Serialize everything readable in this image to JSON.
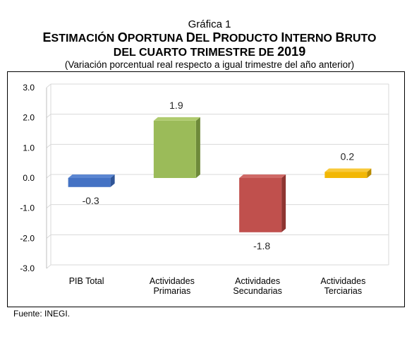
{
  "figure": {
    "number": "Gráfica 1",
    "title_line1": "Estimación Oportuna del Producto Interno Bruto",
    "title_line2": "del cuarto trimestre de 2019",
    "subtitle": "(Variación porcentual real respecto a igual trimestre del año anterior)",
    "source": "Fuente: INEGI."
  },
  "chart_data": {
    "type": "bar",
    "categories": [
      "PIB Total",
      "Actividades Primarias",
      "Actividades Secundarias",
      "Actividades Terciarias"
    ],
    "category_lines": [
      [
        "PIB Total"
      ],
      [
        "Actividades",
        "Primarias"
      ],
      [
        "Actividades",
        "Secundarias"
      ],
      [
        "Actividades",
        "Terciarias"
      ]
    ],
    "values": [
      -0.3,
      1.9,
      -1.8,
      0.2
    ],
    "data_labels": [
      "-0.3",
      "1.9",
      "-1.8",
      "0.2"
    ],
    "colors": [
      "#4472C4",
      "#9BBB59",
      "#C0504D",
      "#F2B705"
    ],
    "side_colors": [
      "#2F5597",
      "#6E8A3A",
      "#8E3431",
      "#B88A00"
    ],
    "top_colors": [
      "#5B86D1",
      "#AFCB6E",
      "#CF6A67",
      "#F8C93A"
    ],
    "ylim": [
      -3.0,
      3.0
    ],
    "yticks": [
      "3.0",
      "2.0",
      "1.0",
      "0.0",
      "-1.0",
      "-2.0",
      "-3.0"
    ],
    "grid": true,
    "bar_style": "3d"
  }
}
